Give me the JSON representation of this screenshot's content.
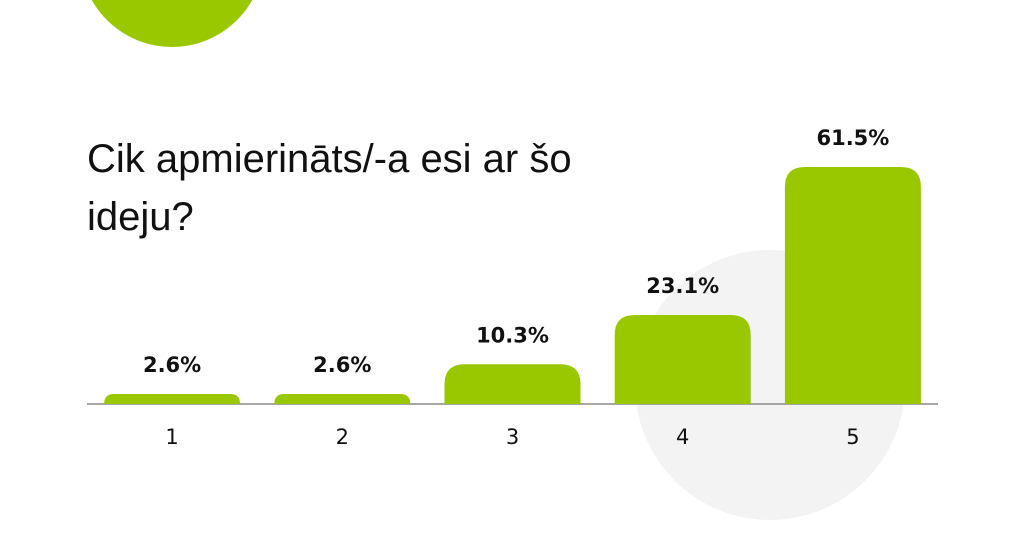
{
  "chart_data": {
    "type": "bar",
    "title": "Cik apmierināts/-a esi ar šo ideju?",
    "categories": [
      "1",
      "2",
      "3",
      "4",
      "5"
    ],
    "values": [
      2.6,
      2.6,
      10.3,
      23.1,
      61.5
    ],
    "value_labels": [
      "2.6%",
      "2.6%",
      "10.3%",
      "23.1%",
      "61.5%"
    ],
    "color": "#99c800"
  }
}
